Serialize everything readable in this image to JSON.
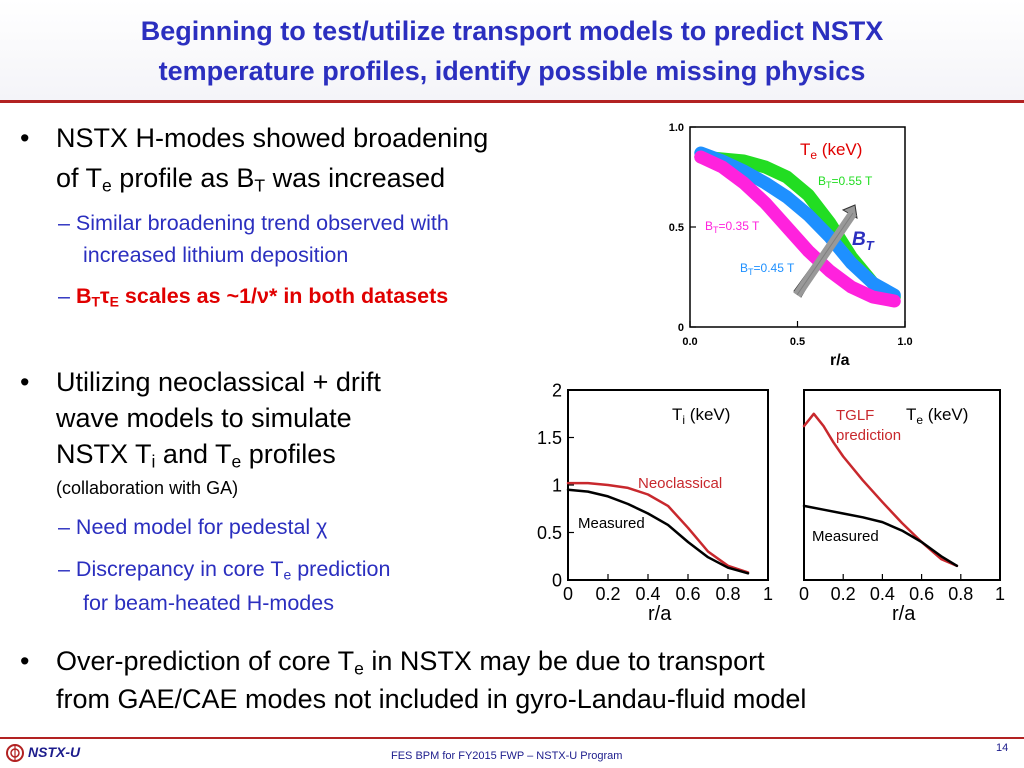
{
  "title": {
    "line1": "Beginning to test/utilize transport models to predict NSTX",
    "line2": "temperature profiles, identify possible missing physics"
  },
  "bullets": {
    "b1": {
      "part1": "NSTX H-modes showed broadening",
      "part2a": "of T",
      "part2b": "e",
      "part2c": " profile as B",
      "part2d": "T",
      "part2e": " was increased"
    },
    "b1_sub1": {
      "line1": "– Similar broadening trend observed with",
      "line2": "increased lithium deposition"
    },
    "b1_sub2": {
      "dash": "– ",
      "a": "B",
      "b": "T",
      "c": "τ",
      "d": "E",
      "e": " scales as ~1/ν* in both datasets"
    },
    "b2": {
      "line1": "Utilizing neoclassical + drift",
      "line2": "wave models to simulate",
      "line3a": "NSTX T",
      "line3b": "i",
      "line3c": " and T",
      "line3d": "e",
      "line3e": " profiles",
      "note": "(collaboration with GA)"
    },
    "b2_sub1": {
      "text": "– Need model for pedestal χ"
    },
    "b2_sub2": {
      "line1a": "– Discrepancy in core T",
      "line1b": "e",
      "line1c": " prediction",
      "line2": "for beam-heated H-modes"
    },
    "b3": {
      "line1a": "Over-prediction of core T",
      "line1b": "e",
      "line1c": " in NSTX may be due to transport",
      "line2": "from GAE/CAE modes not included in gyro-Landau-fluid model"
    }
  },
  "bullet_symbol": "•",
  "footer": {
    "logo": "NSTX-U",
    "center": "FES BPM for FY2015 FWP – NSTX-U Program",
    "page": "14"
  },
  "colors": {
    "title": "#2b2fbf",
    "accent_red": "#e00000",
    "rule": "#b22222"
  },
  "chart_data": [
    {
      "type": "line",
      "xlabel": "r/a",
      "ylabel": "",
      "xlim": [
        0,
        1
      ],
      "ylim": [
        0,
        1
      ],
      "xticks": [
        "0.0",
        "0.5",
        "1.0"
      ],
      "yticks": [
        "0",
        "0.5",
        "1.0"
      ],
      "annotation_title": {
        "a": "T",
        "b": "e",
        "c": " (keV)"
      },
      "arrow_label": {
        "a": "B",
        "b": "T"
      },
      "series": [
        {
          "name": "BT=0.55 T",
          "label_a": "B",
          "label_b": "T",
          "label_c": "=0.55 T",
          "color": "#22dd22",
          "x": [
            0.05,
            0.15,
            0.25,
            0.35,
            0.45,
            0.55,
            0.65,
            0.75,
            0.85,
            0.95
          ],
          "y": [
            0.85,
            0.84,
            0.83,
            0.8,
            0.75,
            0.66,
            0.52,
            0.35,
            0.22,
            0.15
          ]
        },
        {
          "name": "BT=0.45 T",
          "label_a": "B",
          "label_b": "T",
          "label_c": "=0.45 T",
          "color": "#1e90ff",
          "x": [
            0.05,
            0.15,
            0.25,
            0.35,
            0.45,
            0.55,
            0.65,
            0.75,
            0.85,
            0.95
          ],
          "y": [
            0.87,
            0.83,
            0.78,
            0.72,
            0.65,
            0.56,
            0.45,
            0.32,
            0.22,
            0.16
          ]
        },
        {
          "name": "BT=0.35 T",
          "label_a": "B",
          "label_b": "T",
          "label_c": "=0.35 T",
          "color": "#ff22dd",
          "x": [
            0.05,
            0.15,
            0.25,
            0.35,
            0.45,
            0.55,
            0.65,
            0.75,
            0.85,
            0.95
          ],
          "y": [
            0.85,
            0.8,
            0.72,
            0.62,
            0.5,
            0.38,
            0.28,
            0.2,
            0.15,
            0.13
          ]
        }
      ]
    },
    {
      "type": "line",
      "xlabel": "r/a",
      "ylabel": "",
      "xlim": [
        0,
        1
      ],
      "ylim": [
        0,
        2
      ],
      "xticks": [
        "0",
        "0.2",
        "0.4",
        "0.6",
        "0.8",
        "1"
      ],
      "yticks": [
        "0",
        "0.5",
        "1",
        "1.5",
        "2"
      ],
      "annotation_title": {
        "a": "T",
        "b": "i",
        "c": " (keV)"
      },
      "series": [
        {
          "name": "Neoclassical",
          "color": "#c8282d",
          "x": [
            0.0,
            0.1,
            0.2,
            0.3,
            0.4,
            0.5,
            0.6,
            0.7,
            0.8,
            0.9
          ],
          "y": [
            1.02,
            1.02,
            1.0,
            0.97,
            0.9,
            0.78,
            0.55,
            0.3,
            0.15,
            0.08
          ]
        },
        {
          "name": "Measured",
          "color": "#000000",
          "x": [
            0.0,
            0.1,
            0.2,
            0.3,
            0.4,
            0.5,
            0.6,
            0.7,
            0.8,
            0.9
          ],
          "y": [
            0.95,
            0.93,
            0.88,
            0.8,
            0.7,
            0.58,
            0.4,
            0.24,
            0.13,
            0.07
          ]
        }
      ]
    },
    {
      "type": "line",
      "xlabel": "r/a",
      "ylabel": "",
      "xlim": [
        0,
        1
      ],
      "ylim": [
        0,
        2
      ],
      "xticks": [
        "0",
        "0.2",
        "0.4",
        "0.6",
        "0.8",
        "1"
      ],
      "yticks": [],
      "annotation_title": {
        "a": "T",
        "b": "e",
        "c": " (keV)"
      },
      "series": [
        {
          "name": "TGLF prediction",
          "label_a": "TGLF",
          "label_b": "prediction",
          "color": "#c8282d",
          "x": [
            0.0,
            0.05,
            0.1,
            0.15,
            0.2,
            0.3,
            0.4,
            0.5,
            0.6,
            0.7,
            0.78
          ],
          "y": [
            1.62,
            1.75,
            1.62,
            1.45,
            1.3,
            1.05,
            0.82,
            0.6,
            0.4,
            0.22,
            0.15
          ]
        },
        {
          "name": "Measured",
          "color": "#000000",
          "x": [
            0.0,
            0.1,
            0.2,
            0.3,
            0.4,
            0.5,
            0.6,
            0.7,
            0.78
          ],
          "y": [
            0.78,
            0.74,
            0.7,
            0.66,
            0.61,
            0.52,
            0.4,
            0.25,
            0.15
          ]
        }
      ]
    }
  ]
}
